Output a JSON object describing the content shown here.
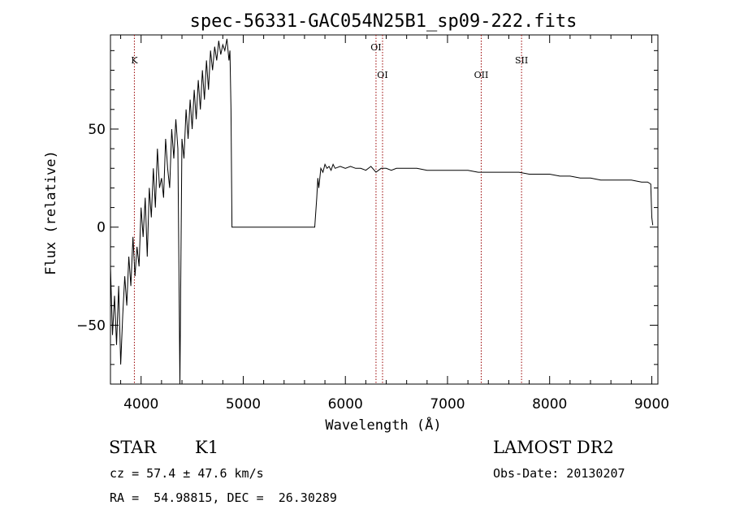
{
  "chart_data": {
    "type": "line",
    "title": "spec-56331-GAC054N25B1_sp09-222.fits",
    "xlabel": "Wavelength (Å)",
    "ylabel": "Flux (relative)",
    "xlim": [
      3700,
      9060
    ],
    "ylim": [
      -80,
      98
    ],
    "xticks": [
      4000,
      5000,
      6000,
      7000,
      8000,
      9000
    ],
    "yticks": [
      -50,
      0,
      50
    ],
    "grid": false,
    "lines": [
      {
        "label": "K",
        "x": 3934
      },
      {
        "label": "OI",
        "x": 6300
      },
      {
        "label": "OI",
        "x": 6364
      },
      {
        "label": "OII",
        "x": 7330
      },
      {
        "label": "SII",
        "x": 7725
      }
    ],
    "spectrum": {
      "x": [
        3700,
        3720,
        3740,
        3760,
        3780,
        3800,
        3820,
        3840,
        3860,
        3880,
        3900,
        3920,
        3940,
        3960,
        3980,
        4000,
        4020,
        4040,
        4060,
        4080,
        4100,
        4120,
        4140,
        4160,
        4180,
        4200,
        4220,
        4240,
        4260,
        4280,
        4300,
        4320,
        4340,
        4360,
        4380,
        4400,
        4420,
        4440,
        4460,
        4480,
        4500,
        4520,
        4540,
        4560,
        4580,
        4600,
        4620,
        4640,
        4660,
        4680,
        4700,
        4720,
        4740,
        4760,
        4780,
        4800,
        4820,
        4840,
        4860,
        4870,
        4880,
        4890,
        5000,
        5200,
        5400,
        5600,
        5700,
        5720,
        5730,
        5740,
        5760,
        5780,
        5800,
        5820,
        5840,
        5860,
        5880,
        5900,
        5950,
        6000,
        6050,
        6100,
        6150,
        6200,
        6250,
        6300,
        6350,
        6400,
        6450,
        6500,
        6600,
        6700,
        6800,
        6900,
        7000,
        7100,
        7200,
        7300,
        7400,
        7500,
        7600,
        7700,
        7800,
        7900,
        8000,
        8100,
        8200,
        8300,
        8400,
        8500,
        8600,
        8700,
        8800,
        8900,
        8960,
        8990,
        9000,
        9010
      ],
      "y": [
        -20,
        -55,
        -35,
        -60,
        -30,
        -70,
        -45,
        -25,
        -40,
        -15,
        -30,
        -5,
        -25,
        -10,
        -20,
        10,
        -5,
        15,
        -15,
        20,
        5,
        30,
        10,
        40,
        20,
        25,
        15,
        45,
        30,
        20,
        50,
        35,
        55,
        40,
        -80,
        45,
        35,
        60,
        45,
        65,
        50,
        70,
        55,
        75,
        60,
        80,
        65,
        85,
        70,
        90,
        80,
        92,
        85,
        95,
        88,
        93,
        90,
        96,
        85,
        90,
        60,
        0,
        0,
        0,
        0,
        0,
        0,
        15,
        25,
        20,
        30,
        28,
        32,
        30,
        31,
        29,
        32,
        30,
        31,
        30,
        31,
        30,
        30,
        29,
        31,
        28,
        30,
        30,
        29,
        30,
        30,
        30,
        29,
        29,
        29,
        29,
        29,
        28,
        28,
        28,
        28,
        28,
        27,
        27,
        27,
        26,
        26,
        25,
        25,
        24,
        24,
        24,
        24,
        23,
        23,
        22,
        5,
        1
      ]
    }
  },
  "info": {
    "class_label": "STAR",
    "subclass": "K1",
    "survey": "LAMOST DR2",
    "cz": "cz = 57.4 ± 47.6 km/s",
    "obs_date": "Obs-Date: 20130207",
    "coords": "RA =  54.98815, DEC =  26.30289"
  }
}
